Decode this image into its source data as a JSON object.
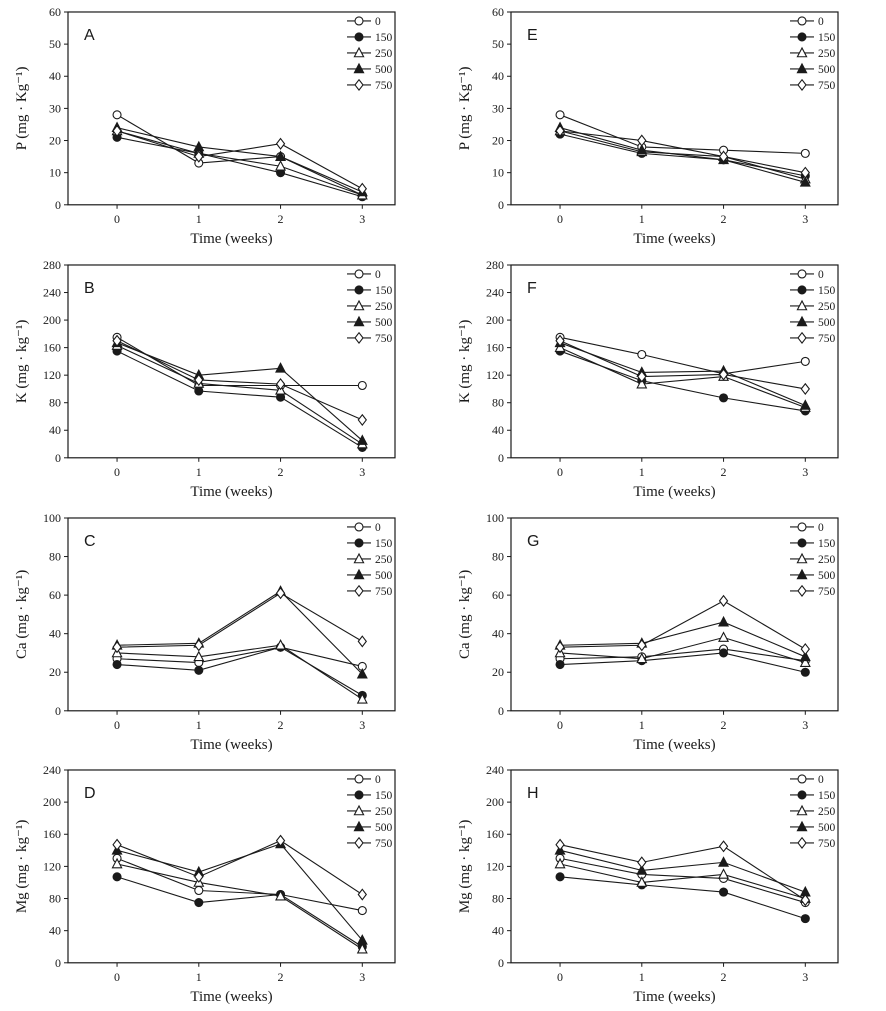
{
  "figure": {
    "xlabel": "Time (weeks)",
    "x_tick_labels": [
      "0",
      "1",
      "2",
      "3"
    ],
    "legend_labels": [
      "0",
      "150",
      "250",
      "500",
      "750"
    ],
    "colors": {
      "ink": "#1a1a1a",
      "background": "#ffffff"
    },
    "marker_legend": {
      "0": "circle-open",
      "150": "circle-filled",
      "250": "triangle-open",
      "500": "triangle-filled",
      "750": "diamond-open"
    }
  },
  "chart_data": [
    {
      "type": "line",
      "panel": "A",
      "ylabel": "P (mg · Kg⁻¹)",
      "xlabel": "Time (weeks)",
      "ylim": [
        0,
        60
      ],
      "ytick_step": 10,
      "x": [
        0,
        1,
        2,
        3
      ],
      "legend_position": "top-right",
      "grid": false,
      "series": [
        {
          "name": "0",
          "marker": "circle-open",
          "values": [
            28,
            13,
            15,
            3
          ]
        },
        {
          "name": "150",
          "marker": "circle-filled",
          "values": [
            21,
            16,
            10,
            2.5
          ]
        },
        {
          "name": "250",
          "marker": "triangle-open",
          "values": [
            23,
            16,
            12,
            3
          ]
        },
        {
          "name": "500",
          "marker": "triangle-filled",
          "values": [
            24,
            18,
            15,
            4
          ]
        },
        {
          "name": "750",
          "marker": "diamond-open",
          "values": [
            23,
            15,
            19,
            5
          ]
        }
      ]
    },
    {
      "type": "line",
      "panel": "B",
      "ylabel": "K (mg · kg⁻¹)",
      "xlabel": "Time (weeks)",
      "ylim": [
        0,
        280
      ],
      "ytick_step": 40,
      "x": [
        0,
        1,
        2,
        3
      ],
      "legend_position": "top-right",
      "grid": false,
      "series": [
        {
          "name": "0",
          "marker": "circle-open",
          "values": [
            175,
            105,
            105,
            105
          ]
        },
        {
          "name": "150",
          "marker": "circle-filled",
          "values": [
            155,
            97,
            88,
            15
          ]
        },
        {
          "name": "250",
          "marker": "triangle-open",
          "values": [
            163,
            108,
            98,
            20
          ]
        },
        {
          "name": "500",
          "marker": "triangle-filled",
          "values": [
            167,
            120,
            130,
            25
          ]
        },
        {
          "name": "750",
          "marker": "diamond-open",
          "values": [
            170,
            113,
            107,
            55
          ]
        }
      ]
    },
    {
      "type": "line",
      "panel": "C",
      "ylabel": "Ca (mg · kg⁻¹)",
      "xlabel": "Time (weeks)",
      "ylim": [
        0,
        100
      ],
      "ytick_step": 20,
      "x": [
        0,
        1,
        2,
        3
      ],
      "legend_position": "top-right",
      "grid": false,
      "series": [
        {
          "name": "0",
          "marker": "circle-open",
          "values": [
            27,
            25,
            33,
            23
          ]
        },
        {
          "name": "150",
          "marker": "circle-filled",
          "values": [
            24,
            21,
            33,
            8
          ]
        },
        {
          "name": "250",
          "marker": "triangle-open",
          "values": [
            30,
            28,
            34,
            6
          ]
        },
        {
          "name": "500",
          "marker": "triangle-filled",
          "values": [
            34,
            35,
            62,
            19
          ]
        },
        {
          "name": "750",
          "marker": "diamond-open",
          "values": [
            33,
            34,
            61,
            36
          ]
        }
      ]
    },
    {
      "type": "line",
      "panel": "D",
      "ylabel": "Mg (mg · kg⁻¹)",
      "xlabel": "Time (weeks)",
      "ylim": [
        0,
        240
      ],
      "ytick_step": 40,
      "x": [
        0,
        1,
        2,
        3
      ],
      "legend_position": "top-right",
      "grid": false,
      "series": [
        {
          "name": "0",
          "marker": "circle-open",
          "values": [
            130,
            90,
            85,
            65
          ]
        },
        {
          "name": "150",
          "marker": "circle-filled",
          "values": [
            107,
            75,
            85,
            20
          ]
        },
        {
          "name": "250",
          "marker": "triangle-open",
          "values": [
            123,
            100,
            83,
            17
          ]
        },
        {
          "name": "500",
          "marker": "triangle-filled",
          "values": [
            140,
            113,
            148,
            28
          ]
        },
        {
          "name": "750",
          "marker": "diamond-open",
          "values": [
            147,
            107,
            152,
            85
          ]
        }
      ]
    },
    {
      "type": "line",
      "panel": "E",
      "ylabel": "P (mg · Kg⁻¹)",
      "xlabel": "Time (weeks)",
      "ylim": [
        0,
        60
      ],
      "ytick_step": 10,
      "x": [
        0,
        1,
        2,
        3
      ],
      "legend_position": "top-right",
      "grid": false,
      "series": [
        {
          "name": "0",
          "marker": "circle-open",
          "values": [
            28,
            18,
            17,
            16
          ]
        },
        {
          "name": "150",
          "marker": "circle-filled",
          "values": [
            22,
            16,
            14,
            9
          ]
        },
        {
          "name": "250",
          "marker": "triangle-open",
          "values": [
            23,
            16.5,
            15,
            8
          ]
        },
        {
          "name": "500",
          "marker": "triangle-filled",
          "values": [
            24,
            17,
            14,
            7
          ]
        },
        {
          "name": "750",
          "marker": "diamond-open",
          "values": [
            23,
            20,
            15,
            10
          ]
        }
      ]
    },
    {
      "type": "line",
      "panel": "F",
      "ylabel": "K (mg · kg⁻¹)",
      "xlabel": "Time (weeks)",
      "ylim": [
        0,
        280
      ],
      "ytick_step": 40,
      "x": [
        0,
        1,
        2,
        3
      ],
      "legend_position": "top-right",
      "grid": false,
      "series": [
        {
          "name": "0",
          "marker": "circle-open",
          "values": [
            175,
            150,
            122,
            140
          ]
        },
        {
          "name": "150",
          "marker": "circle-filled",
          "values": [
            155,
            112,
            87,
            68
          ]
        },
        {
          "name": "250",
          "marker": "triangle-open",
          "values": [
            160,
            107,
            118,
            73
          ]
        },
        {
          "name": "500",
          "marker": "triangle-filled",
          "values": [
            167,
            124,
            126,
            76
          ]
        },
        {
          "name": "750",
          "marker": "diamond-open",
          "values": [
            170,
            118,
            121,
            100
          ]
        }
      ]
    },
    {
      "type": "line",
      "panel": "G",
      "ylabel": "Ca (mg · kg⁻¹)",
      "xlabel": "Time (weeks)",
      "ylim": [
        0,
        100
      ],
      "ytick_step": 20,
      "x": [
        0,
        1,
        2,
        3
      ],
      "legend_position": "top-right",
      "grid": false,
      "series": [
        {
          "name": "0",
          "marker": "circle-open",
          "values": [
            27,
            28,
            32,
            26
          ]
        },
        {
          "name": "150",
          "marker": "circle-filled",
          "values": [
            24,
            26,
            30,
            20
          ]
        },
        {
          "name": "250",
          "marker": "triangle-open",
          "values": [
            30,
            27,
            38,
            25
          ]
        },
        {
          "name": "500",
          "marker": "triangle-filled",
          "values": [
            34,
            35,
            46,
            28
          ]
        },
        {
          "name": "750",
          "marker": "diamond-open",
          "values": [
            33,
            34,
            57,
            32
          ]
        }
      ]
    },
    {
      "type": "line",
      "panel": "H",
      "ylabel": "Mg (mg · kg⁻¹)",
      "xlabel": "Time (weeks)",
      "ylim": [
        0,
        240
      ],
      "ytick_step": 40,
      "x": [
        0,
        1,
        2,
        3
      ],
      "legend_position": "top-right",
      "grid": false,
      "series": [
        {
          "name": "0",
          "marker": "circle-open",
          "values": [
            130,
            110,
            105,
            75
          ]
        },
        {
          "name": "150",
          "marker": "circle-filled",
          "values": [
            107,
            97,
            88,
            55
          ]
        },
        {
          "name": "250",
          "marker": "triangle-open",
          "values": [
            123,
            100,
            110,
            80
          ]
        },
        {
          "name": "500",
          "marker": "triangle-filled",
          "values": [
            140,
            115,
            125,
            88
          ]
        },
        {
          "name": "750",
          "marker": "diamond-open",
          "values": [
            147,
            125,
            145,
            78
          ]
        }
      ]
    }
  ]
}
